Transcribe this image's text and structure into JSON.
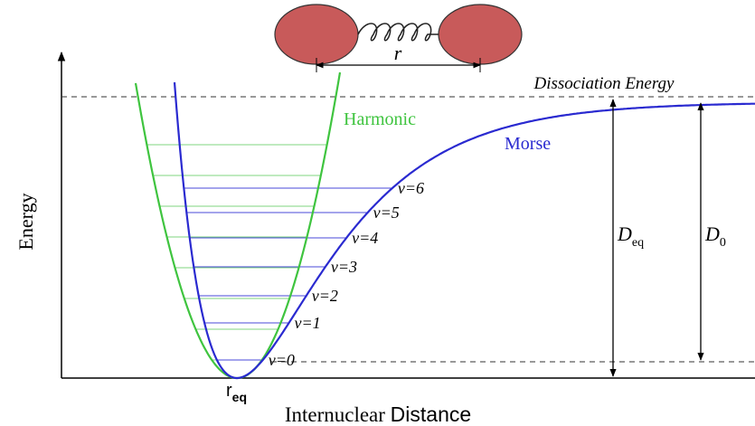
{
  "molecule": {
    "bond_label": "r"
  },
  "dissociation_label": "Dissociation Energy",
  "curves": {
    "harmonic": "Harmonic",
    "morse": "Morse"
  },
  "levels": [
    "ν=0",
    "ν=1",
    "ν=2",
    "ν=3",
    "ν=4",
    "ν=5",
    "ν=6"
  ],
  "depths": {
    "d_eq": {
      "main": "D",
      "sub": "eq"
    },
    "d_0": {
      "main": "D",
      "sub": "0"
    }
  },
  "r_eq": {
    "main": "r",
    "sub": "eq"
  },
  "axes": {
    "y_label": "Energy",
    "x_label": [
      "Internuclear",
      "Distance"
    ]
  }
}
